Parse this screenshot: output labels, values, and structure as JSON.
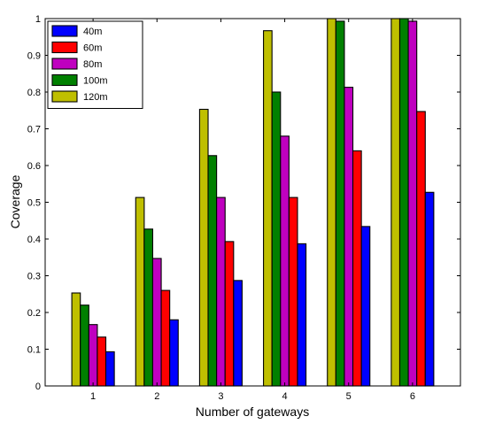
{
  "chart_data": {
    "type": "bar",
    "title": "",
    "xlabel": "Number of gateways",
    "ylabel": "Coverage",
    "categories": [
      "1",
      "2",
      "3",
      "4",
      "5",
      "6"
    ],
    "ylim": [
      0,
      1
    ],
    "yticks": [
      "0",
      "0.1",
      "0.2",
      "0.3",
      "0.4",
      "0.5",
      "0.6",
      "0.7",
      "0.8",
      "0.9",
      "1"
    ],
    "grid": false,
    "legend_position": "top-left",
    "series": [
      {
        "name": "40m",
        "color": "#0000ff",
        "values": [
          0.093,
          0.18,
          0.287,
          0.387,
          0.434,
          0.527
        ]
      },
      {
        "name": "60m",
        "color": "#ff0000",
        "values": [
          0.133,
          0.26,
          0.393,
          0.513,
          0.64,
          0.747
        ]
      },
      {
        "name": "80m",
        "color": "#bf00bf",
        "values": [
          0.167,
          0.347,
          0.513,
          0.68,
          0.813,
          0.993
        ]
      },
      {
        "name": "100m",
        "color": "#008000",
        "values": [
          0.22,
          0.427,
          0.627,
          0.8,
          0.993,
          1.0
        ]
      },
      {
        "name": "120m",
        "color": "#bfbf00",
        "values": [
          0.253,
          0.513,
          0.753,
          0.967,
          1.0,
          1.0
        ]
      }
    ],
    "draw_order": [
      "120m",
      "100m",
      "80m",
      "60m",
      "40m"
    ]
  }
}
